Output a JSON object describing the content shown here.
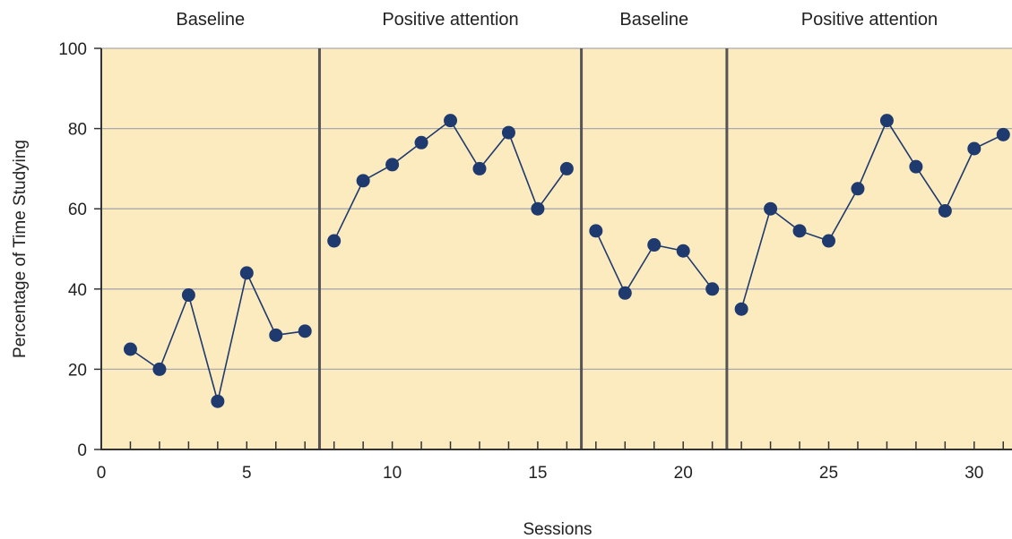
{
  "chart_data": {
    "type": "line",
    "title": "",
    "xlabel": "Sessions",
    "ylabel": "Percentage of Time Studying",
    "xlim": [
      0,
      31.3
    ],
    "ylim": [
      0,
      100
    ],
    "x_ticks": [
      0,
      5,
      10,
      15,
      20,
      25,
      30
    ],
    "y_ticks": [
      0,
      20,
      40,
      60,
      80,
      100
    ],
    "grid": true,
    "background_color": "#fdebc0",
    "line_color": "#1f3a6e",
    "marker_color": "#1f3a6e",
    "divider_color": "#555555",
    "phase_dividers": [
      7.5,
      16.5,
      21.5
    ],
    "phases": [
      {
        "label": "Baseline",
        "start": 0,
        "end": 7.5
      },
      {
        "label": "Positive attention",
        "start": 7.5,
        "end": 16.5
      },
      {
        "label": "Baseline",
        "start": 16.5,
        "end": 21.5
      },
      {
        "label": "Positive attention",
        "start": 21.5,
        "end": 31.3
      }
    ],
    "series": [
      {
        "segments": [
          {
            "x": [
              1,
              2,
              3,
              4,
              5,
              6,
              7
            ],
            "y": [
              25,
              20,
              38.5,
              12,
              44,
              28.5,
              29.5
            ]
          },
          {
            "x": [
              8,
              9,
              10,
              11,
              12,
              13,
              14,
              15,
              16
            ],
            "y": [
              52,
              67,
              71,
              76.5,
              82,
              70,
              79,
              60,
              70
            ]
          },
          {
            "x": [
              17,
              18,
              19,
              20,
              21
            ],
            "y": [
              54.5,
              39,
              51,
              49.5,
              40
            ]
          },
          {
            "x": [
              22,
              23,
              24,
              25,
              26,
              27,
              28,
              29,
              30,
              31
            ],
            "y": [
              35,
              60,
              54.5,
              52,
              65,
              82,
              70.5,
              59.5,
              75,
              78.5
            ]
          }
        ]
      }
    ]
  }
}
